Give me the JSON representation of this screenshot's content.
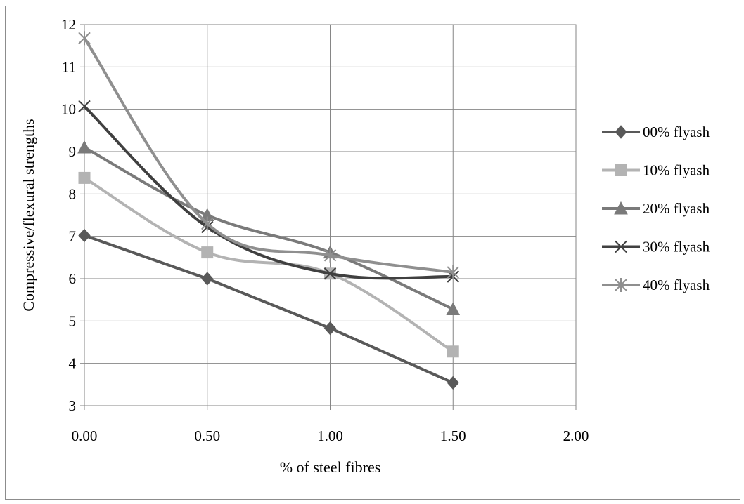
{
  "chart_data": {
    "type": "line",
    "xlabel": "% of steel fibres",
    "ylabel": "Compressive/flexural strengths",
    "xlim": [
      0,
      2
    ],
    "ylim": [
      3,
      12
    ],
    "xticks": [
      0,
      0.5,
      1,
      1.5,
      2
    ],
    "xtick_labels": [
      "0.00",
      "0.50",
      "1.00",
      "1.50",
      "2.00"
    ],
    "yticks": [
      3,
      4,
      5,
      6,
      7,
      8,
      9,
      10,
      11,
      12
    ],
    "ytick_labels": [
      "3",
      "4",
      "5",
      "6",
      "7",
      "8",
      "9",
      "10",
      "11",
      "12"
    ],
    "grid": true,
    "legend_position": "right",
    "x": [
      0,
      0.5,
      1,
      1.5
    ],
    "series": [
      {
        "name": "00% flyash",
        "values": [
          7.02,
          6.0,
          4.83,
          3.54
        ],
        "color": "#595959",
        "marker": "diamond",
        "smooth": false
      },
      {
        "name": "10% flyash",
        "values": [
          8.38,
          6.62,
          6.12,
          4.28
        ],
        "color": "#b3b3b3",
        "marker": "square",
        "smooth": true
      },
      {
        "name": "20% flyash",
        "values": [
          9.1,
          7.5,
          6.62,
          5.28
        ],
        "color": "#7a7a7a",
        "marker": "triangle",
        "smooth": true
      },
      {
        "name": "30% flyash",
        "values": [
          10.07,
          7.22,
          6.12,
          6.05
        ],
        "color": "#404040",
        "marker": "x",
        "smooth": true
      },
      {
        "name": "40% flyash",
        "values": [
          11.68,
          7.3,
          6.55,
          6.15
        ],
        "color": "#8f8f8f",
        "marker": "star",
        "smooth": true
      }
    ]
  }
}
